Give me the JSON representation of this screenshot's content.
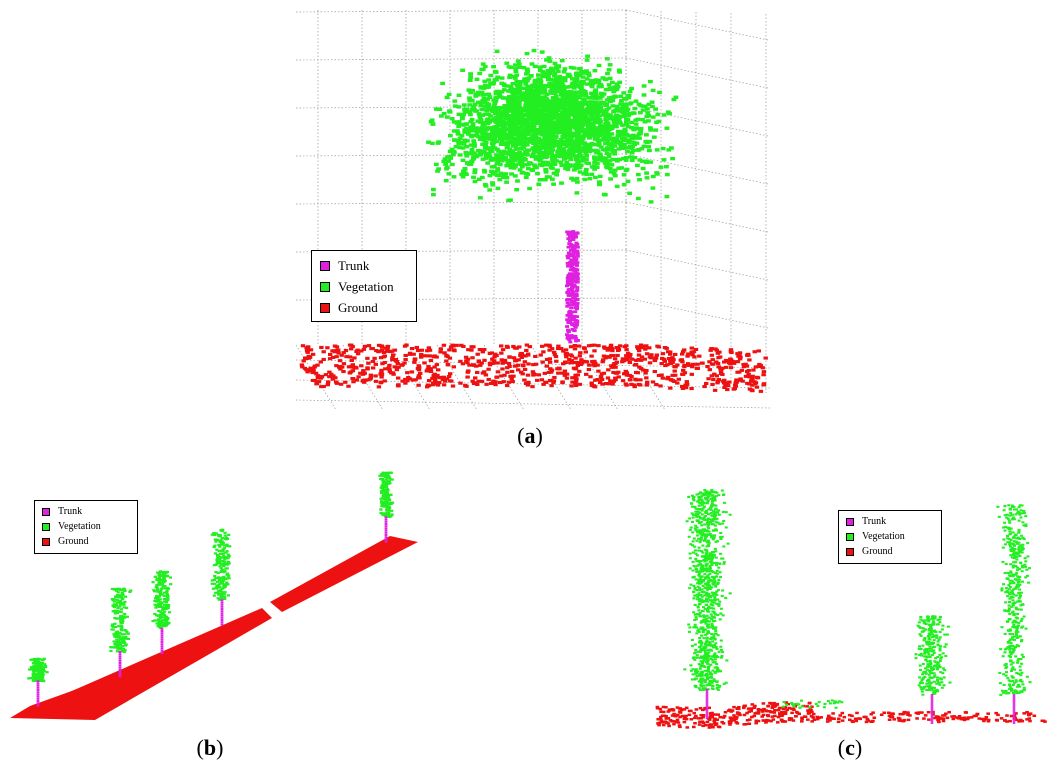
{
  "colors": {
    "trunk": "#e020e0",
    "vegetation": "#22ee22",
    "ground": "#ee1111"
  },
  "panels": [
    {
      "id": "a",
      "caption_letter": "a",
      "legend": [
        {
          "label": "Trunk",
          "color": "#e020e0"
        },
        {
          "label": "Vegetation",
          "color": "#22ee22"
        },
        {
          "label": "Ground",
          "color": "#ee1111"
        }
      ]
    },
    {
      "id": "b",
      "caption_letter": "b",
      "legend": [
        {
          "label": "Trunk",
          "color": "#e020e0"
        },
        {
          "label": "Vegetation",
          "color": "#22ee22"
        },
        {
          "label": "Ground",
          "color": "#ee1111"
        }
      ]
    },
    {
      "id": "c",
      "caption_letter": "c",
      "legend": [
        {
          "label": "Trunk",
          "color": "#e020e0"
        },
        {
          "label": "Vegetation",
          "color": "#22ee22"
        },
        {
          "label": "Ground",
          "color": "#ee1111"
        }
      ]
    }
  ]
}
